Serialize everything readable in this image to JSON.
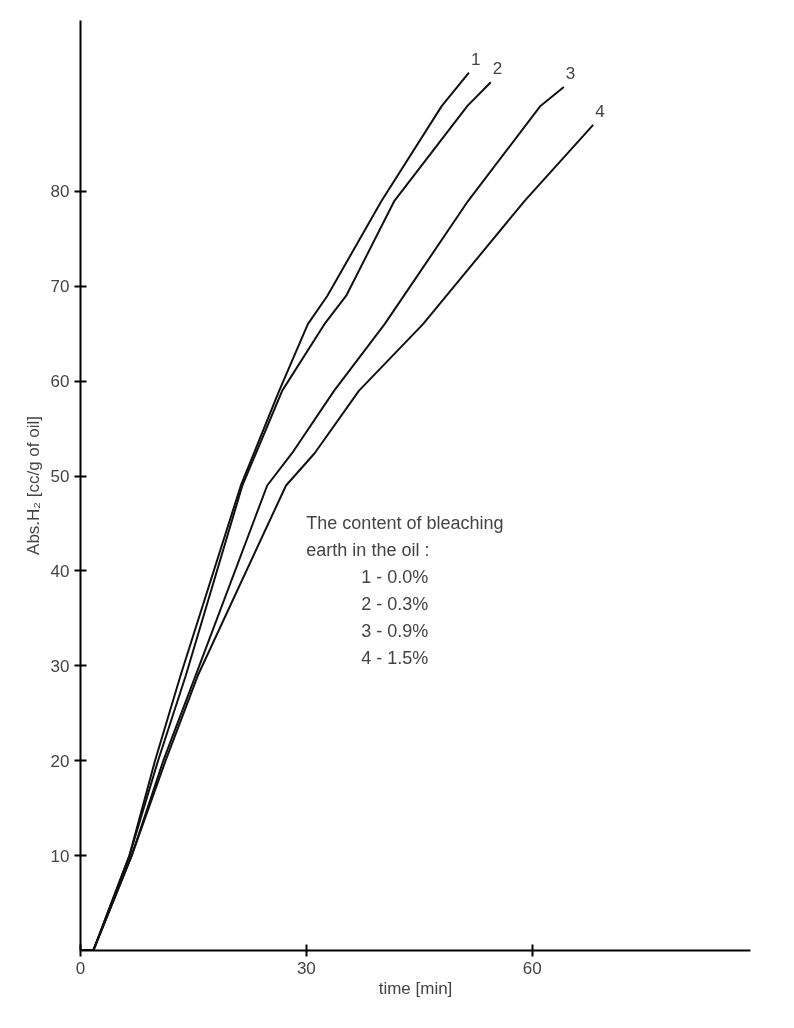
{
  "chart_data": {
    "type": "line",
    "xlabel": "time [min]",
    "ylabel": "Abs.H₂ [cc/g of oil]",
    "xlim": [
      0,
      89
    ],
    "ylim": [
      0,
      98
    ],
    "xticks": [
      0,
      30,
      60
    ],
    "yticks": [
      10,
      20,
      30,
      40,
      50,
      60,
      70,
      80
    ],
    "grid": false,
    "marker": "none",
    "line_style": "solid",
    "series": [
      {
        "name": "1",
        "color": "#111111",
        "x": [
          0,
          1.7,
          6.5,
          9.9,
          13.3,
          21.3,
          26.4,
          30.2,
          32.8,
          40,
          48,
          51.6
        ],
        "values": [
          0,
          0,
          10,
          20,
          29,
          49,
          59,
          66,
          69,
          79,
          89,
          92.5
        ]
      },
      {
        "name": "2",
        "color": "#111111",
        "x": [
          0,
          1.7,
          6.5,
          10.3,
          14,
          21.5,
          26.8,
          32.4,
          35.3,
          41.7,
          51.4,
          54.5
        ],
        "values": [
          0,
          0,
          10,
          20,
          29,
          49,
          59,
          66,
          69,
          79,
          89,
          91.5
        ]
      },
      {
        "name": "3",
        "color": "#111111",
        "x": [
          0,
          1.7,
          6.8,
          11,
          15.3,
          24.8,
          28.1,
          33.7,
          40.4,
          51.5,
          61.1,
          64.2
        ],
        "values": [
          0,
          0,
          10,
          20,
          29,
          49,
          52.4,
          59,
          66,
          79,
          89,
          91
        ]
      },
      {
        "name": "4",
        "color": "#111111",
        "x": [
          0,
          1.7,
          6.8,
          11.3,
          15.6,
          27.3,
          31.1,
          37,
          45.5,
          59,
          68.1
        ],
        "values": [
          0,
          0,
          10,
          20,
          29,
          49,
          52.4,
          59,
          66,
          79,
          87
        ]
      }
    ],
    "annotations": [
      "The content of bleaching",
      "earth in the oil :",
      "1 - 0.0%",
      "2 - 0.3%",
      "3 - 0.9%",
      "4 - 1.5%"
    ]
  }
}
